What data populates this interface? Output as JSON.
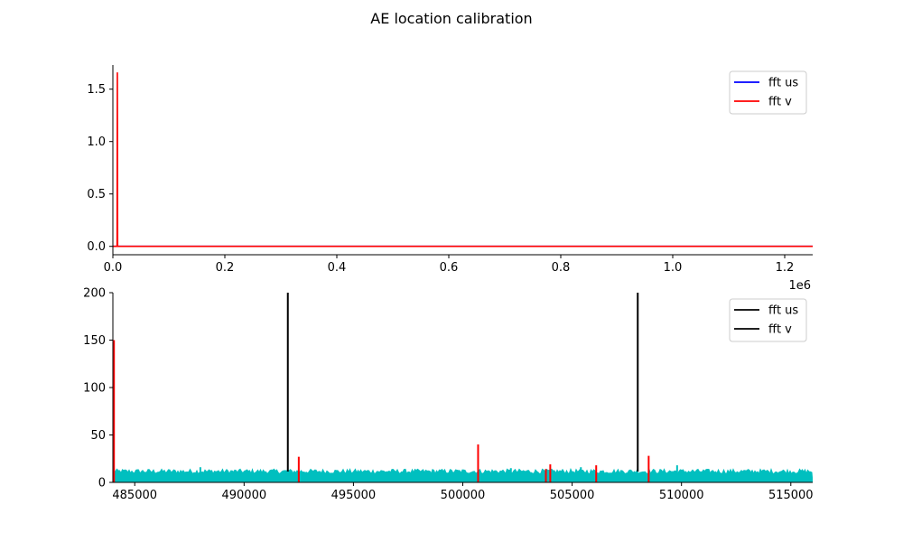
{
  "figure": {
    "title": "AE location calibration"
  },
  "chart_data": [
    {
      "type": "line",
      "title": "",
      "xlabel": "",
      "ylabel": "",
      "xlim": [
        0,
        1250000
      ],
      "ylim": [
        -0.08,
        1.73
      ],
      "x_ticks": [
        0,
        200000,
        400000,
        600000,
        800000,
        1000000,
        1200000
      ],
      "x_tick_labels": [
        "0.0",
        "0.2",
        "0.4",
        "0.6",
        "0.8",
        "1.0",
        "1.2"
      ],
      "x_offset_label": "1e6",
      "y_ticks": [
        0,
        0.5,
        1.0,
        1.5
      ],
      "y_tick_labels": [
        "0.0",
        "0.5",
        "1.0",
        "1.5"
      ],
      "legend_position": "top-right",
      "series": [
        {
          "name": "fft us",
          "color": "#0000ff",
          "x": [
            0,
            1250000
          ],
          "y": [
            0,
            0
          ]
        },
        {
          "name": "fft v",
          "color": "#ff0000",
          "x": [
            0,
            7500,
            8000,
            8500,
            1250000
          ],
          "y": [
            0,
            0,
            1.66,
            0,
            0
          ]
        }
      ]
    },
    {
      "type": "line",
      "title": "",
      "xlabel": "",
      "ylabel": "",
      "xlim": [
        484000,
        516000
      ],
      "ylim": [
        0,
        200
      ],
      "x_ticks": [
        485000,
        490000,
        495000,
        500000,
        505000,
        510000,
        515000
      ],
      "x_tick_labels": [
        "485000",
        "490000",
        "495000",
        "500000",
        "505000",
        "510000",
        "515000"
      ],
      "y_ticks": [
        0,
        50,
        100,
        150,
        200
      ],
      "y_tick_labels": [
        "0",
        "50",
        "100",
        "150",
        "200"
      ],
      "legend_position": "top-right",
      "noise_band": {
        "color": "#00bfbf",
        "x_range": [
          484000,
          516000
        ],
        "baseline": 11,
        "amplitude_range": [
          9,
          14
        ],
        "bumps": [
          {
            "x": 488000,
            "y": 16
          },
          {
            "x": 502200,
            "y": 15
          },
          {
            "x": 505400,
            "y": 16
          },
          {
            "x": 509800,
            "y": 18
          }
        ]
      },
      "spikes": [
        {
          "series": "fft v",
          "x": 484050,
          "y": 150,
          "color": "#ff0000"
        },
        {
          "series": "fft v",
          "x": 492500,
          "y": 27,
          "color": "#ff0000"
        },
        {
          "series": "fft v",
          "x": 500700,
          "y": 40,
          "color": "#ff0000"
        },
        {
          "series": "fft v",
          "x": 503800,
          "y": 14,
          "color": "#ff0000"
        },
        {
          "series": "fft v",
          "x": 504000,
          "y": 19,
          "color": "#ff0000"
        },
        {
          "series": "fft v",
          "x": 506100,
          "y": 18,
          "color": "#ff0000"
        },
        {
          "series": "fft v",
          "x": 508500,
          "y": 28,
          "color": "#ff0000"
        }
      ],
      "vlines": [
        {
          "x": 492000,
          "color": "#000000"
        },
        {
          "x": 508000,
          "color": "#000000"
        }
      ],
      "legend": [
        {
          "name": "fft us",
          "color": "#000000"
        },
        {
          "name": "fft v",
          "color": "#000000"
        }
      ]
    }
  ]
}
